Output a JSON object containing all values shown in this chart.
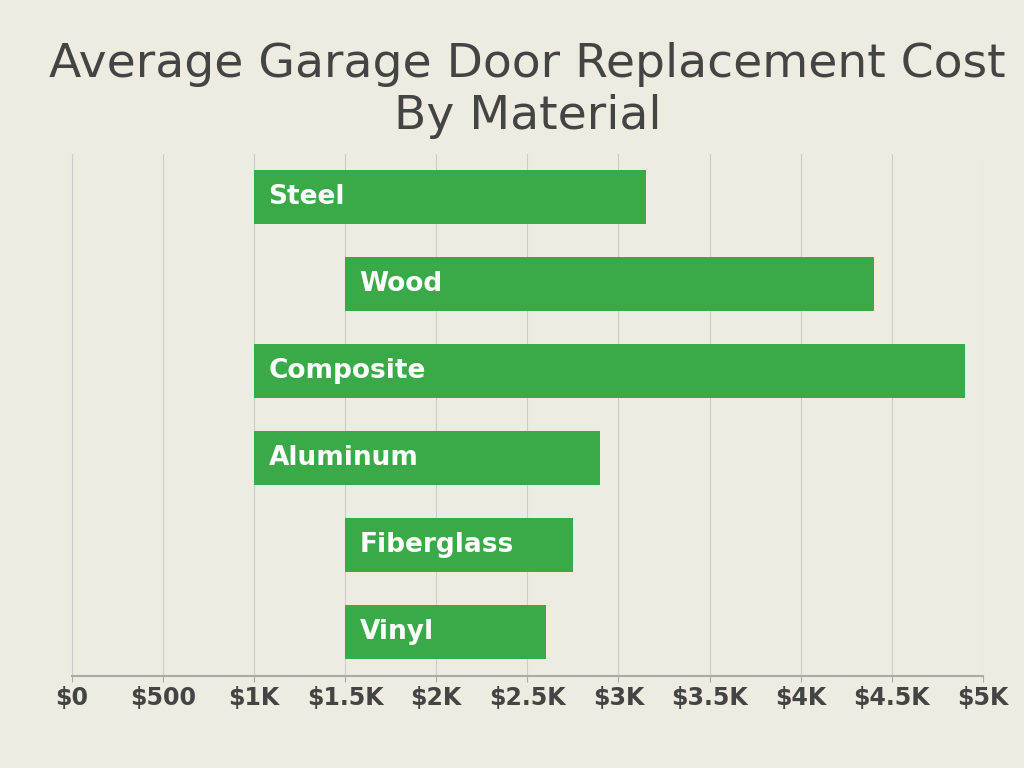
{
  "title": "Average Garage Door Replacement Cost\nBy Material",
  "categories": [
    "Steel",
    "Wood",
    "Composite",
    "Aluminum",
    "Fiberglass",
    "Vinyl"
  ],
  "bar_starts": [
    1000,
    1500,
    1000,
    1000,
    1500,
    1500
  ],
  "bar_ends": [
    3150,
    4400,
    4900,
    2900,
    2750,
    2600
  ],
  "bar_color": "#3aaa49",
  "label_color": "#ffffff",
  "background_color": "#eeebe0",
  "title_color": "#444444",
  "axis_color": "#aaaaaa",
  "tick_color": "#444444",
  "grid_color": "#cccccc",
  "xlim": [
    0,
    5000
  ],
  "xticks": [
    0,
    500,
    1000,
    1500,
    2000,
    2500,
    3000,
    3500,
    4000,
    4500,
    5000
  ],
  "xtick_labels": [
    "$0",
    "$500",
    "$1K",
    "$1.5K",
    "$2K",
    "$2.5K",
    "$3K",
    "$3.5K",
    "$4K",
    "$4.5K",
    "$5K"
  ],
  "title_fontsize": 34,
  "label_fontsize": 19,
  "tick_fontsize": 17,
  "bar_height": 0.62
}
